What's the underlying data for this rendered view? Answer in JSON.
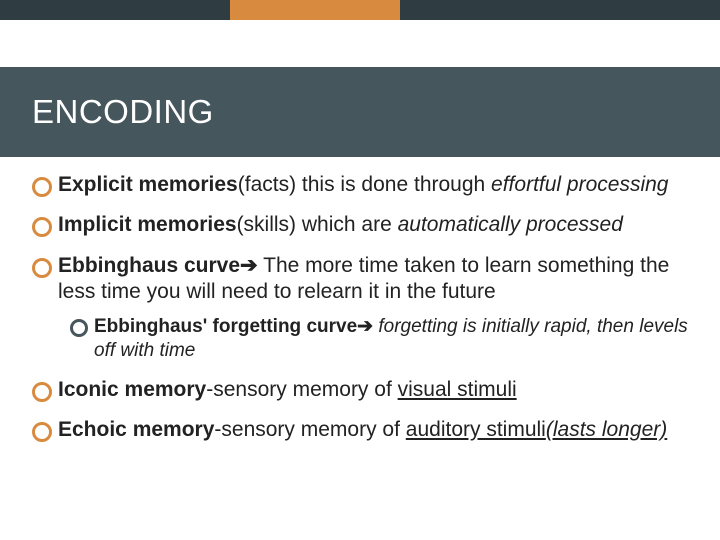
{
  "colors": {
    "accent_orange": "#d88b3f",
    "header_bg": "#46565d",
    "dark_bar": "#2f3c42",
    "text": "#222222",
    "bg": "#ffffff"
  },
  "header": {
    "title": "ENCODING"
  },
  "bullets": {
    "b1": {
      "bold": "Explicit memories",
      "plain1": "(facts) this is done through ",
      "italic": "effortful processing"
    },
    "b2": {
      "bold": "Implicit memories",
      "plain1": "(skills) which are ",
      "italic": "automatically processed"
    },
    "b3": {
      "bold": "Ebbinghaus curve",
      "arrow": "➔",
      "plain": " The more time taken to learn something the less time you will need to relearn it in the future",
      "sub": {
        "bold": "Ebbinghaus' forgetting curve",
        "arrow": "➔",
        "italic": " forgetting is initially rapid, then levels off with time"
      }
    },
    "b4": {
      "bold": "Iconic memory",
      "plain": "-sensory memory of ",
      "underline": "visual stimuli"
    },
    "b5": {
      "bold": "Echoic memory",
      "plain": "-sensory memory of ",
      "underline1": "auditory stimuli",
      "italic_under": "(lasts longer)"
    }
  }
}
